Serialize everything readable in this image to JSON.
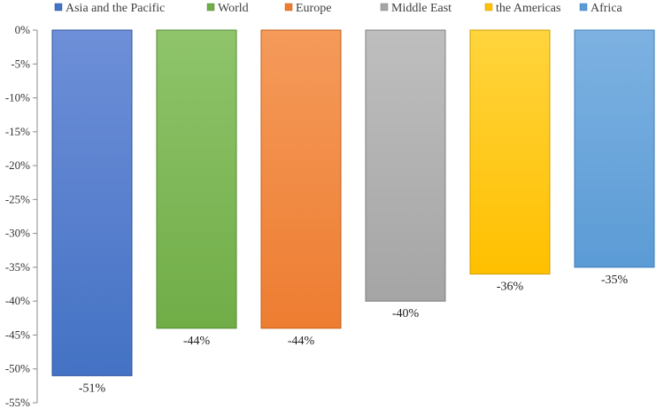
{
  "chart_data": {
    "type": "bar",
    "title": "",
    "xlabel": "",
    "ylabel": "",
    "ylim": [
      -55,
      0
    ],
    "y_tick_step": 5,
    "y_tick_format": "percent",
    "grid": false,
    "legend_position": "top",
    "categories": [
      "Asia and the Pacific",
      "World",
      "Europe",
      "Middle East",
      "the Americas",
      "Africa"
    ],
    "values": [
      -51,
      -44,
      -44,
      -40,
      -36,
      -35
    ],
    "data_labels": [
      "-51%",
      "-44%",
      "-44%",
      "-40%",
      "-36%",
      "-35%"
    ],
    "colors": [
      "#4472C4",
      "#70AD47",
      "#ED7D31",
      "#A5A5A5",
      "#FFC000",
      "#5B9BD5"
    ],
    "colors_light": [
      "#6E8FD8",
      "#8FC46B",
      "#F59A5A",
      "#BEBEBE",
      "#FFD43D",
      "#7DB2E2"
    ],
    "colors_edge": [
      "#2F55A0",
      "#548A33",
      "#C45F1A",
      "#7F7F7F",
      "#D19E00",
      "#3C7DBA"
    ]
  }
}
